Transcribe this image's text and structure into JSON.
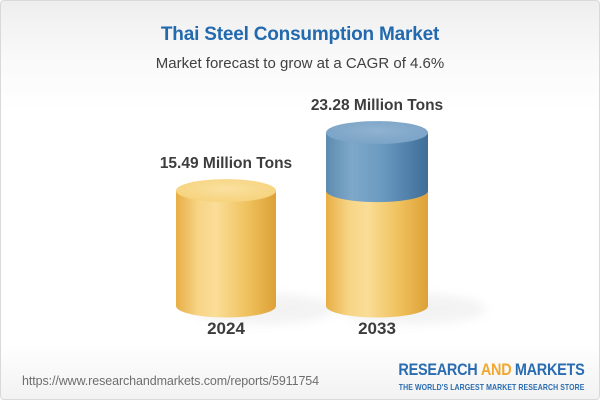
{
  "header": {
    "title": "Thai Steel Consumption Market",
    "subtitle": "Market forecast to grow at a CAGR of 4.6%",
    "title_color": "#2269ae"
  },
  "chart_data": {
    "type": "bar",
    "variant": "3d-cylinder-stacked",
    "title": "Thai Steel Consumption Market",
    "subtitle": "Market forecast to grow at a CAGR of 4.6%",
    "cagr_percent": 4.6,
    "unit": "Million Tons",
    "categories": [
      "2024",
      "2033"
    ],
    "values": [
      15.49,
      23.28
    ],
    "value_labels": [
      "15.49 Million Tons",
      "23.28 Million Tons"
    ],
    "stacking_note": "2033 cylinder shows the 2024 level in gold with the incremental growth segment in blue on top",
    "legend": "none",
    "axes": "none (value labels shown above each cylinder)",
    "colors": {
      "gold": "#f2c664",
      "blue": "#6495bc",
      "label": "#3d3d3d"
    }
  },
  "footer": {
    "url": "https://www.researchandmarkets.com/reports/5911754",
    "logo": {
      "word_research": "RESEARCH",
      "word_and": "AND",
      "word_markets": "MARKETS",
      "tagline": "THE WORLD'S LARGEST MARKET RESEARCH STORE",
      "blue": "#2a6cb0",
      "gold": "#f0a830"
    }
  }
}
